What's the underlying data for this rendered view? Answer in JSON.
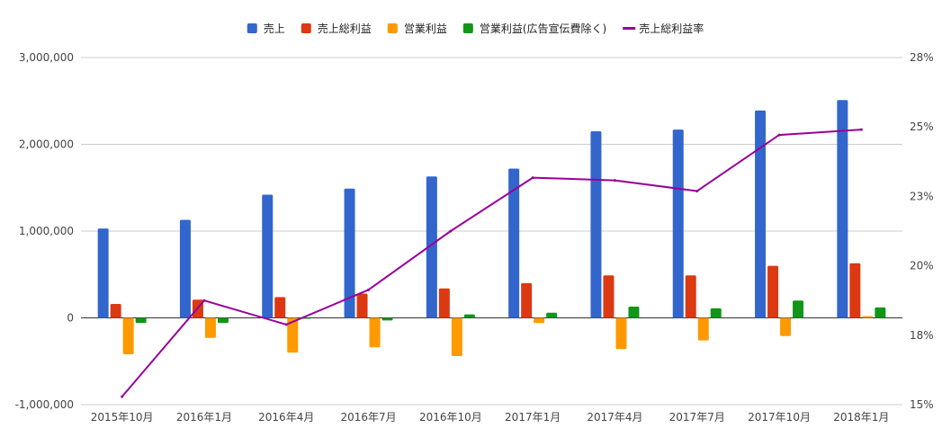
{
  "chart_data": {
    "type": "bar",
    "categories": [
      "2015年10月",
      "2016年1月",
      "2016年4月",
      "2016年7月",
      "2016年10月",
      "2017年1月",
      "2017年4月",
      "2017年7月",
      "2017年10月",
      "2018年1月"
    ],
    "series": [
      {
        "name": "売上",
        "kind": "bar",
        "axis": "left",
        "color": "#3366cc",
        "values": [
          1030000,
          1130000,
          1420000,
          1490000,
          1630000,
          1720000,
          2150000,
          2170000,
          2390000,
          2510000
        ]
      },
      {
        "name": "売上総利益",
        "kind": "bar",
        "axis": "left",
        "color": "#dc3912",
        "values": [
          160000,
          210000,
          240000,
          280000,
          340000,
          400000,
          490000,
          490000,
          600000,
          630000
        ]
      },
      {
        "name": "営業利益",
        "kind": "bar",
        "axis": "left",
        "color": "#ff9900",
        "values": [
          -420000,
          -230000,
          -400000,
          -340000,
          -440000,
          -60000,
          -360000,
          -260000,
          -210000,
          20000
        ]
      },
      {
        "name": "営業利益(広告宣伝費除く)",
        "kind": "bar",
        "axis": "left",
        "color": "#109618",
        "values": [
          -60000,
          -60000,
          -10000,
          -30000,
          40000,
          60000,
          130000,
          110000,
          200000,
          120000
        ]
      },
      {
        "name": "売上総利益率",
        "kind": "line",
        "axis": "right",
        "color": "#990099",
        "values": [
          15.3,
          18.9,
          18.0,
          19.3,
          21.5,
          23.5,
          23.4,
          23.0,
          25.1,
          25.3
        ]
      }
    ],
    "y_left": {
      "min": -1000000,
      "max": 3000000,
      "ticks": [
        -1000000,
        0,
        1000000,
        2000000,
        3000000
      ],
      "tick_labels": [
        "-1,000,000",
        "0",
        "1,000,000",
        "2,000,000",
        "3,000,000"
      ]
    },
    "y_right": {
      "min": 15,
      "max": 28,
      "ticks": [
        15,
        17.6,
        20.2,
        22.8,
        25.4,
        28
      ],
      "tick_labels": [
        "15%",
        "18%",
        "20%",
        "23%",
        "25%",
        "28%"
      ]
    },
    "legend_position": "top",
    "grid": true
  }
}
